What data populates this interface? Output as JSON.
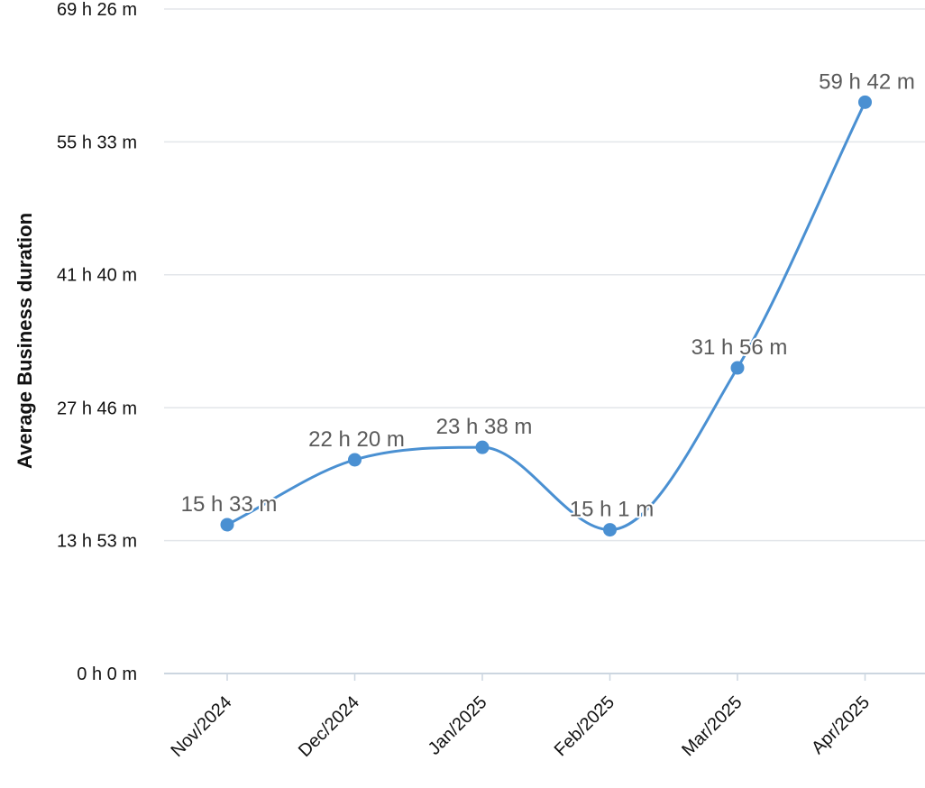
{
  "chart_data": {
    "type": "line",
    "title": "",
    "xlabel": "",
    "ylabel": "Average Business duration",
    "categories": [
      "Nov/2024",
      "Dec/2024",
      "Jan/2025",
      "Feb/2025",
      "Mar/2025",
      "Apr/2025"
    ],
    "series": [
      {
        "values_minutes": [
          933,
          1340,
          1418,
          901,
          1916,
          3582
        ],
        "labels": [
          "15 h 33 m",
          "22 h 20 m",
          "23 h 38 m",
          "15 h 1 m",
          "31 h 56 m",
          "59 h 42 m"
        ]
      }
    ],
    "y_ticks_minutes": [
      0,
      833,
      1666,
      2500,
      3333,
      4166
    ],
    "y_tick_labels": [
      "0 h 0 m",
      "13 h 53 m",
      "27 h 46 m",
      "41 h 40 m",
      "55 h 33 m",
      "69 h 26 m"
    ],
    "ylim_minutes": [
      0,
      4166
    ],
    "grid": true,
    "legend": "none",
    "colors": {
      "series": "#4a90d2",
      "grid": "#e3e6ea",
      "axis": "#ccd6e0"
    }
  }
}
